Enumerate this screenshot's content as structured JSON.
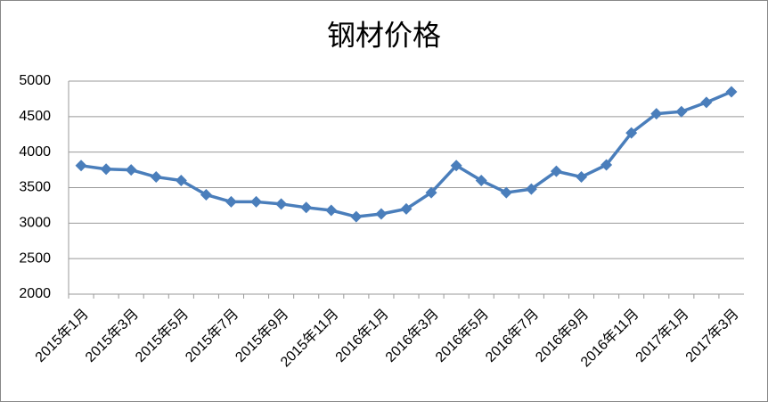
{
  "chart_data": {
    "type": "line",
    "title": "钢材价格",
    "categories": [
      "2015年1月",
      null,
      "2015年3月",
      null,
      "2015年5月",
      null,
      "2015年7月",
      null,
      "2015年9月",
      null,
      "2015年11月",
      null,
      "2016年1月",
      null,
      "2016年3月",
      null,
      "2016年5月",
      null,
      "2016年7月",
      null,
      "2016年9月",
      null,
      "2016年11月",
      null,
      "2017年1月",
      null,
      "2017年3月"
    ],
    "series": [
      {
        "color": "#4a7ebb",
        "values": [
          3810,
          3760,
          3750,
          3650,
          3600,
          3400,
          3300,
          3300,
          3270,
          3220,
          3180,
          3090,
          3130,
          3200,
          3430,
          3810,
          3600,
          3430,
          3480,
          3730,
          3650,
          3820,
          4270,
          4540,
          4570,
          4700,
          4850
        ]
      }
    ],
    "ylim": [
      2000,
      5000
    ],
    "yticks": [
      2000,
      2500,
      3000,
      3500,
      4000,
      4500,
      5000
    ],
    "grid": true
  }
}
